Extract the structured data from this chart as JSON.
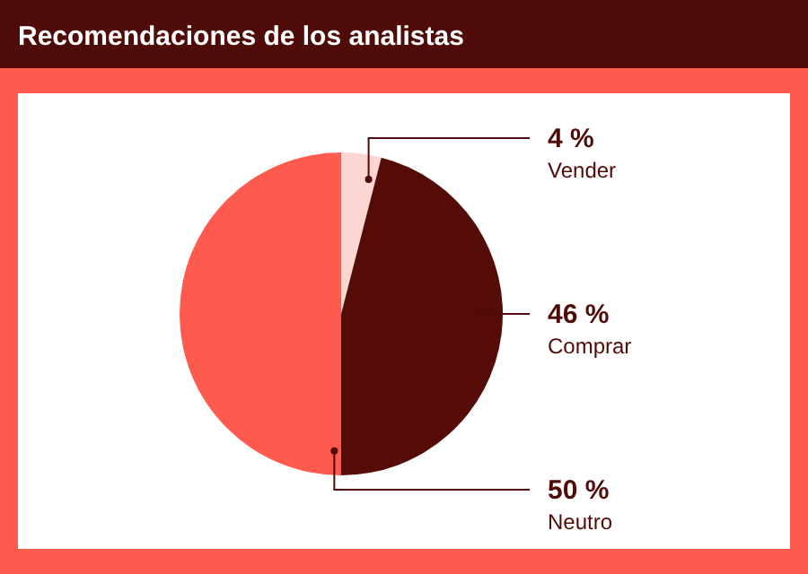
{
  "chart_data": {
    "type": "pie",
    "title": "Recomendaciones de los analistas",
    "categories": [
      "Vender",
      "Comprar",
      "Neutro"
    ],
    "values": [
      4,
      46,
      50
    ],
    "colors": [
      "#fcd6d2",
      "#550b06",
      "#ff5a4e"
    ],
    "value_labels": [
      "4 %",
      "46 %",
      "50 %"
    ],
    "legend": false
  }
}
